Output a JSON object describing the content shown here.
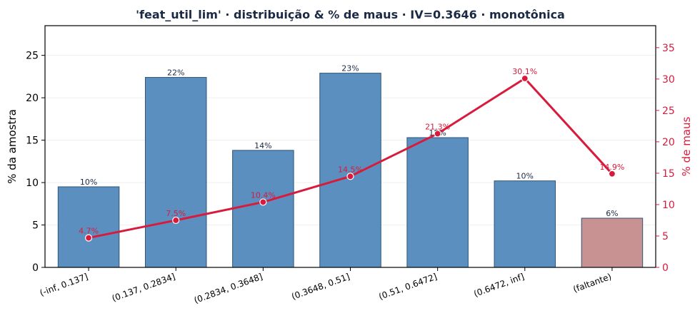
{
  "title": "'feat_util_lim' · distribuição & % de maus  ·  IV=0.3646  ·  monotônica",
  "chart_data": {
    "type": "bar",
    "title": "'feat_util_lim' · distribuição & % de maus  ·  IV=0.3646  ·  monotônica",
    "xlabel": "",
    "ylabel": "% da amostra",
    "y2label": "% de maus",
    "categories": [
      "(-inf, 0.137]",
      "(0.137, 0.2834]",
      "(0.2834, 0.3648]",
      "(0.3648, 0.51]",
      "(0.51, 0.6472]",
      "(0.6472, inf]",
      "(faltante)"
    ],
    "series": [
      {
        "axis": "left",
        "type": "bar",
        "values": [
          9.5,
          22.4,
          13.8,
          22.9,
          15.3,
          10.2,
          5.8
        ],
        "labels": [
          "10%",
          "22%",
          "14%",
          "23%",
          "15%",
          "10%",
          "6%"
        ],
        "colors": [
          "#5b8fbf",
          "#5b8fbf",
          "#5b8fbf",
          "#5b8fbf",
          "#5b8fbf",
          "#5b8fbf",
          "#c99292"
        ]
      },
      {
        "axis": "right",
        "type": "line",
        "values": [
          4.7,
          7.5,
          10.4,
          14.5,
          21.3,
          30.1,
          14.9
        ],
        "labels": [
          "4.7%",
          "7.5%",
          "10.4%",
          "14.5%",
          "21.3%",
          "30.1%",
          "14.9%"
        ],
        "color": "#d81b3c"
      }
    ],
    "ylim": [
      0,
      28.5
    ],
    "y2lim": [
      0,
      38.5
    ],
    "yticks": [
      "0",
      "5",
      "10",
      "15",
      "20",
      "25"
    ],
    "y2ticks": [
      "0",
      "5",
      "10",
      "15",
      "20",
      "25",
      "30",
      "35"
    ],
    "grid": true,
    "legend": "none"
  }
}
